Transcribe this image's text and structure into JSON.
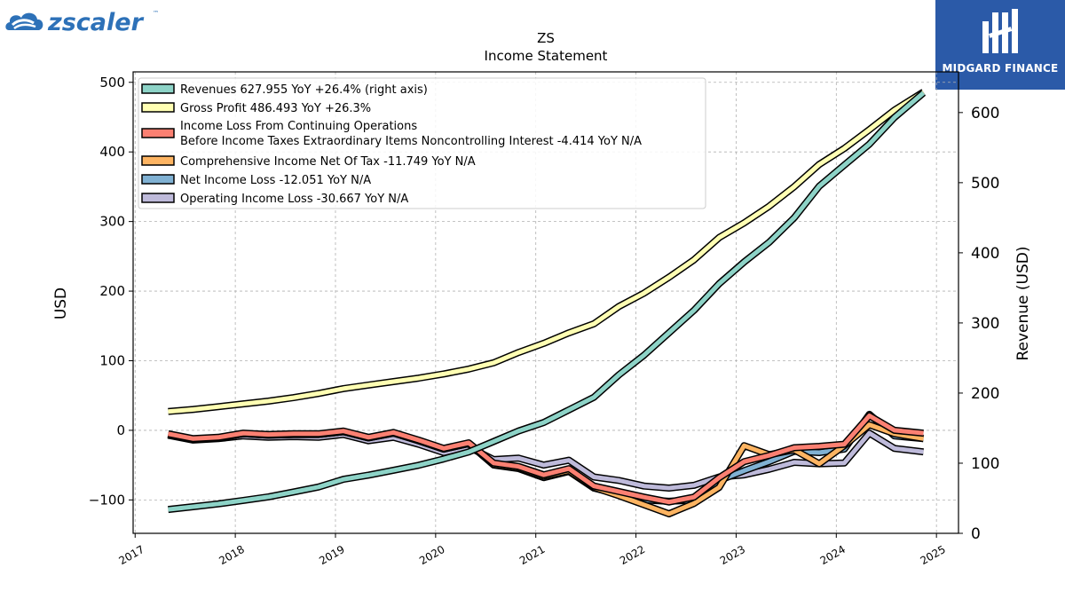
{
  "branding": {
    "left_logo_text": "zscaler",
    "left_logo_tm": "™",
    "left_logo_icon": "zscaler-cloud-icon",
    "right_logo_text": "MIDGARD FINANCE",
    "right_logo_icon": "midgard-monogram-icon",
    "right_logo_bg": "#2b5aa8"
  },
  "chart_data": {
    "type": "line",
    "title": "ZS",
    "subtitle": "Income Statement",
    "ylabel_left": "USD",
    "ylabel_right": "Revenue (USD)",
    "ylim_left": [
      -148,
      515
    ],
    "ylim_right": [
      0,
      658
    ],
    "xlim": [
      2016.98,
      2025.22
    ],
    "x_ticks": [
      2017,
      2018,
      2019,
      2020,
      2021,
      2022,
      2023,
      2024,
      2025
    ],
    "y_ticks_left": [
      -100,
      0,
      100,
      200,
      300,
      400,
      500
    ],
    "y_ticks_right": [
      0,
      100,
      200,
      300,
      400,
      500,
      600
    ],
    "grid": true,
    "legend_position": "upper-left",
    "x": [
      2017.33,
      2017.58,
      2017.83,
      2018.08,
      2018.33,
      2018.58,
      2018.83,
      2019.08,
      2019.33,
      2019.58,
      2019.83,
      2020.08,
      2020.33,
      2020.58,
      2020.83,
      2021.08,
      2021.33,
      2021.58,
      2021.83,
      2022.08,
      2022.33,
      2022.58,
      2022.83,
      2023.08,
      2023.33,
      2023.58,
      2023.83,
      2024.08,
      2024.33,
      2024.58,
      2024.87
    ],
    "series": [
      {
        "name": "Revenues",
        "legend": "Revenues  627.955 YoY +26.4% (right axis)",
        "axis": "right",
        "color": "#8dd3c7",
        "values": [
          34,
          38,
          42,
          47,
          52,
          59,
          66,
          77,
          83,
          90,
          97,
          106,
          116,
          131,
          146,
          158,
          176,
          194,
          226,
          254,
          286,
          318,
          356,
          387,
          415,
          450,
          495,
          525,
          555,
          593,
          628
        ]
      },
      {
        "name": "Gross Profit",
        "legend": "Gross Profit  486.493 YoY +26.3%",
        "axis": "left",
        "color": "#ffffb3",
        "values": [
          27,
          30,
          34,
          38,
          42,
          47,
          53,
          60,
          65,
          70,
          75,
          81,
          88,
          97,
          112,
          125,
          140,
          153,
          178,
          197,
          220,
          245,
          277,
          298,
          322,
          350,
          382,
          405,
          432,
          460,
          486
        ]
      },
      {
        "name": "Income Loss From Continuing Operations Before Income Taxes Extraordinary Items Noncontrolling Interest",
        "legend": "Income Loss From Continuing Operations\nBefore Income Taxes Extraordinary Items Noncontrolling Interest  -4.414 YoY N/A",
        "axis": "left",
        "color": "#fb8072",
        "values": [
          -5,
          -12,
          -10,
          -4,
          -6,
          -5,
          -5,
          -1,
          -10,
          -3,
          -14,
          -26,
          -18,
          -47,
          -52,
          -64,
          -55,
          -80,
          -88,
          -96,
          -103,
          -96,
          -68,
          -45,
          -36,
          -25,
          -23,
          -20,
          21,
          0,
          -4
        ]
      },
      {
        "name": "Comprehensive Income Net Of Tax",
        "legend": "Comprehensive Income Net Of Tax  -11.749 YoY N/A",
        "axis": "left",
        "color": "#fdb462",
        "values": [
          -6,
          -13,
          -11,
          -5,
          -7,
          -6,
          -6,
          -2,
          -11,
          -4,
          -15,
          -27,
          -19,
          -49,
          -54,
          -66,
          -58,
          -82,
          -94,
          -107,
          -120,
          -105,
          -82,
          -22,
          -35,
          -28,
          -48,
          -22,
          8,
          -5,
          -12
        ]
      },
      {
        "name": "Net Income Loss",
        "legend": "Net Income Loss  -12.051 YoY N/A",
        "axis": "left",
        "color": "#80b1d3",
        "values": [
          -6,
          -13,
          -11,
          -5,
          -7,
          -6,
          -6,
          -2,
          -11,
          -4,
          -15,
          -27,
          -19,
          -50,
          -55,
          -68,
          -59,
          -83,
          -92,
          -100,
          -102,
          -100,
          -72,
          -58,
          -45,
          -30,
          -32,
          -27,
          23,
          -8,
          -12
        ]
      },
      {
        "name": "Operating Income Loss",
        "legend": "Operating Income Loss  -30.667 YoY N/A",
        "axis": "left",
        "color": "#bebada",
        "values": [
          -7,
          -14,
          -12,
          -8,
          -10,
          -9,
          -10,
          -6,
          -15,
          -10,
          -20,
          -32,
          -24,
          -42,
          -40,
          -50,
          -43,
          -67,
          -72,
          -80,
          -83,
          -79,
          -67,
          -64,
          -56,
          -46,
          -48,
          -47,
          -4,
          -26,
          -31
        ]
      }
    ]
  }
}
